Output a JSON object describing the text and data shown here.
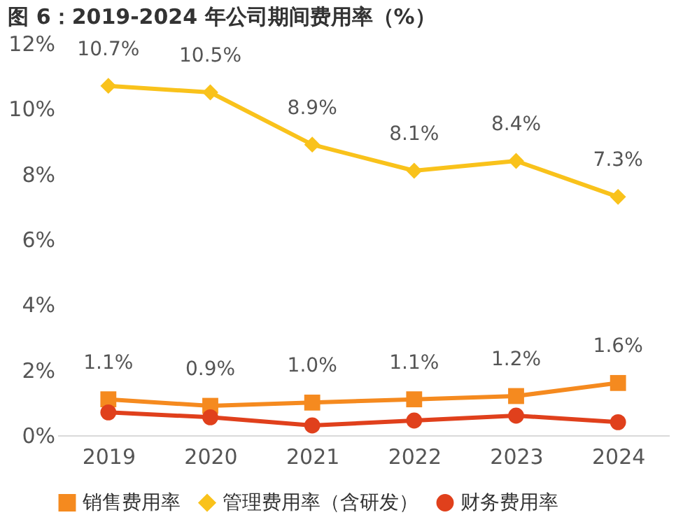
{
  "chart_data": {
    "type": "line",
    "title": "图 6：2019-2024 年公司期间费用率（%）",
    "categories": [
      "2019",
      "2020",
      "2021",
      "2022",
      "2023",
      "2024"
    ],
    "series": [
      {
        "name": "销售费用率",
        "color": "#f58a1f",
        "marker": "square",
        "values": [
          1.1,
          0.9,
          1.0,
          1.1,
          1.2,
          1.6
        ],
        "value_labels": [
          "1.1%",
          "0.9%",
          "1.0%",
          "1.1%",
          "1.2%",
          "1.6%"
        ]
      },
      {
        "name": "管理费用率（含研发）",
        "color": "#f9c21b",
        "marker": "diamond",
        "values": [
          10.7,
          10.5,
          8.9,
          8.1,
          8.4,
          7.3
        ],
        "value_labels": [
          "10.7%",
          "10.5%",
          "8.9%",
          "8.1%",
          "8.4%",
          "7.3%"
        ]
      },
      {
        "name": "财务费用率",
        "color": "#e0401c",
        "marker": "circle",
        "values": [
          0.7,
          0.55,
          0.3,
          0.45,
          0.6,
          0.4
        ]
      }
    ],
    "ylim": [
      0,
      12
    ],
    "yticks": [
      {
        "value": 0,
        "label": "0%"
      },
      {
        "value": 2,
        "label": "2%"
      },
      {
        "value": 4,
        "label": "4%"
      },
      {
        "value": 6,
        "label": "6%"
      },
      {
        "value": 8,
        "label": "8%"
      },
      {
        "value": 10,
        "label": "10%"
      },
      {
        "value": 12,
        "label": "12%"
      }
    ],
    "grid": false,
    "legend": "bottom",
    "line_style": "solid"
  }
}
